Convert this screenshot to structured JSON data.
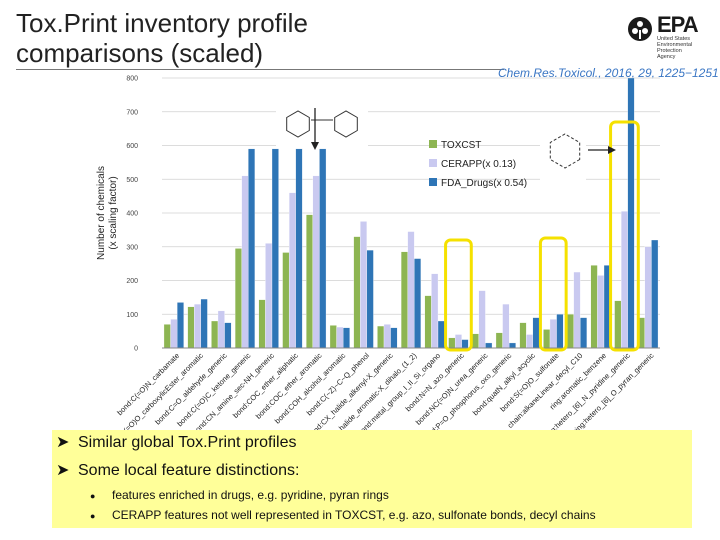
{
  "slide": {
    "title_line1": "Tox.Print inventory profile",
    "title_line2": "comparisons (scaled)",
    "citation": "Chem.Res.Toxicol., 2016, 29, 1225−1251",
    "logo": {
      "name": "EPA",
      "subtitle_lines": [
        "United States",
        "Environmental Protection",
        "Agency"
      ],
      "color": "#1a1a1a"
    },
    "bullets": [
      {
        "text": "Similar global Tox.Print profiles",
        "subitems": []
      },
      {
        "text": "Some local feature distinctions:",
        "subitems": [
          "features enriched in drugs, e.g. pyridine, pyran rings",
          "CERAPP features not well represented in TOXCST, e.g. azo, sulfonate bonds, decyl chains"
        ]
      }
    ],
    "highlight_color": "#ffff99",
    "callout_box_color": "#f5e100",
    "annotation_arrow_icon": "arrow-icon",
    "structure_icons": [
      "biphenyl-structure-icon",
      "pyridine-structure-icon"
    ]
  },
  "chart_data": {
    "type": "bar",
    "ylabel": "Number of chemicals\n(x scaling factor)",
    "ylim": [
      0,
      800
    ],
    "yticks": [
      0,
      100,
      200,
      300,
      400,
      500,
      600,
      700,
      800
    ],
    "grid": true,
    "legend_position": "right",
    "categories": [
      "bond:C(=O)N_carbamate",
      "bond:C(=O)O_carboxylicEster_aromatic",
      "bond:C=O_aldehyde_generic",
      "bond:C(=O)C_ketone_generic",
      "bond:CN_amine_sec-NH_generic",
      "bond:COC_ether_aliphatic",
      "bond:COC_ether_aromatic",
      "bond:COH_alcohol_aromatic",
      "bond:C(~Z)~C~Q_phenol",
      "bond:CX_halide_alkenyl-X_generic",
      "bond:CX_halide_aromatic-X_dihalo_(1_2)",
      "bond:metal_group_I_II_Si_organo",
      "bond:N=N_azo_generic",
      "bond:NC(=O)N_urea_generic",
      "bond:P=O_phosphorus_oxo_generic",
      "bond:quatN_alkyl_acyclic",
      "bond:S(=O)O_sulfonate",
      "chain:alkaneLinear_decyl_C10",
      "ring:aromatic_benzene",
      "ring:hetero_[6]_N_pyridine_generic",
      "ring:hetero_[6]_O_pyran_generic"
    ],
    "series": [
      {
        "name": "TOXCST",
        "color": "#8db552",
        "values": [
          70,
          122,
          80,
          295,
          143,
          283,
          395,
          67,
          330,
          65,
          285,
          155,
          30,
          42,
          45,
          75,
          55,
          100,
          245,
          140,
          90
        ]
      },
      {
        "name": "CERAPP(x 0.13)",
        "color": "#c9c9f0",
        "values": [
          85,
          130,
          110,
          510,
          310,
          460,
          510,
          62,
          375,
          70,
          345,
          220,
          40,
          170,
          130,
          40,
          85,
          225,
          215,
          405,
          300
        ]
      },
      {
        "name": "FDA_Drugs(x 0.54)",
        "color": "#2e75b6",
        "values": [
          135,
          145,
          75,
          590,
          590,
          590,
          590,
          60,
          290,
          60,
          265,
          80,
          25,
          15,
          15,
          90,
          100,
          90,
          245,
          800,
          320
        ]
      }
    ]
  }
}
